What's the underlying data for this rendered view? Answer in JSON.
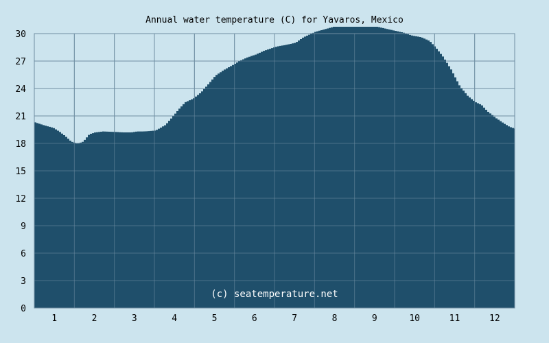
{
  "chart_data": {
    "type": "area",
    "title": "Annual water temperature (C) for Yavaros, Mexico",
    "watermark": "(c) seatemperature.net",
    "xlabel": "",
    "ylabel": "",
    "x_categories": [
      "1",
      "2",
      "3",
      "4",
      "5",
      "6",
      "7",
      "8",
      "9",
      "10",
      "11",
      "12"
    ],
    "y_ticks": [
      "0",
      "3",
      "6",
      "9",
      "12",
      "15",
      "18",
      "21",
      "24",
      "27",
      "30"
    ],
    "ylim": [
      0,
      30
    ],
    "xlim": [
      0.5,
      12.5
    ],
    "grid": true,
    "colors": {
      "fill": "#1f4f6b",
      "grid": "#6f8ea2",
      "background": "#cce4ee"
    },
    "series": [
      {
        "points": [
          [
            0.5,
            20.3
          ],
          [
            0.7,
            20.0
          ],
          [
            0.95,
            19.7
          ],
          [
            1.1,
            19.3
          ],
          [
            1.25,
            18.8
          ],
          [
            1.4,
            18.2
          ],
          [
            1.55,
            17.95
          ],
          [
            1.7,
            18.2
          ],
          [
            1.85,
            19.0
          ],
          [
            2.0,
            19.2
          ],
          [
            2.2,
            19.3
          ],
          [
            2.5,
            19.25
          ],
          [
            2.7,
            19.2
          ],
          [
            2.9,
            19.2
          ],
          [
            3.05,
            19.3
          ],
          [
            3.2,
            19.3
          ],
          [
            3.35,
            19.35
          ],
          [
            3.5,
            19.4
          ],
          [
            3.75,
            20.0
          ],
          [
            3.95,
            21.0
          ],
          [
            4.1,
            21.8
          ],
          [
            4.25,
            22.5
          ],
          [
            4.45,
            22.9
          ],
          [
            4.65,
            23.6
          ],
          [
            4.85,
            24.6
          ],
          [
            5.0,
            25.4
          ],
          [
            5.2,
            26.0
          ],
          [
            5.45,
            26.6
          ],
          [
            5.6,
            27.0
          ],
          [
            5.8,
            27.4
          ],
          [
            6.0,
            27.7
          ],
          [
            6.2,
            28.1
          ],
          [
            6.4,
            28.4
          ],
          [
            6.55,
            28.6
          ],
          [
            6.8,
            28.8
          ],
          [
            7.0,
            29.0
          ],
          [
            7.2,
            29.6
          ],
          [
            7.5,
            30.2
          ],
          [
            7.75,
            30.5
          ],
          [
            8.0,
            30.8
          ],
          [
            8.25,
            30.8
          ],
          [
            8.45,
            31.0
          ],
          [
            8.6,
            31.1
          ],
          [
            8.8,
            30.9
          ],
          [
            9.0,
            30.8
          ],
          [
            9.2,
            30.6
          ],
          [
            9.5,
            30.3
          ],
          [
            9.7,
            30.1
          ],
          [
            9.9,
            29.8
          ],
          [
            10.15,
            29.6
          ],
          [
            10.35,
            29.2
          ],
          [
            10.5,
            28.5
          ],
          [
            10.7,
            27.4
          ],
          [
            10.9,
            26.0
          ],
          [
            11.1,
            24.3
          ],
          [
            11.3,
            23.2
          ],
          [
            11.5,
            22.5
          ],
          [
            11.65,
            22.2
          ],
          [
            11.8,
            21.5
          ],
          [
            12.0,
            20.8
          ],
          [
            12.2,
            20.2
          ],
          [
            12.35,
            19.8
          ],
          [
            12.5,
            19.6
          ]
        ]
      }
    ]
  }
}
